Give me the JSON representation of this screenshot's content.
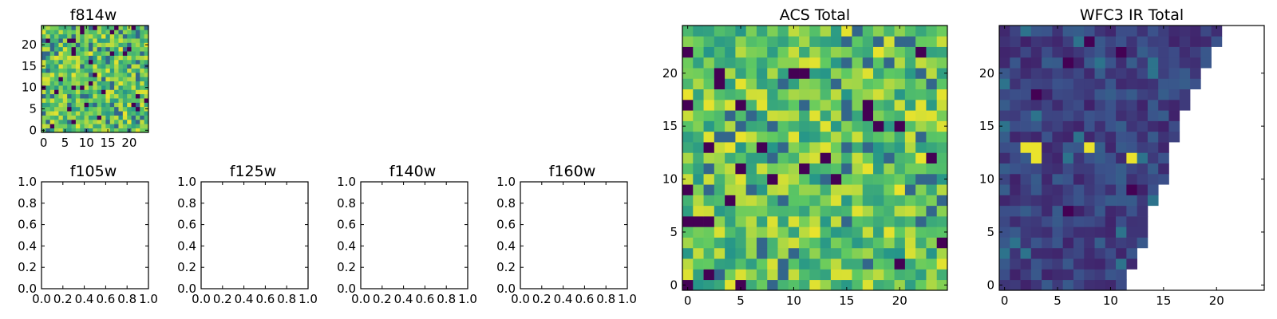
{
  "colormap": [
    "#440154",
    "#3b528b",
    "#21918c",
    "#5ec962",
    "#fde725"
  ],
  "chart_data": [
    {
      "type": "heatmap",
      "id": "f814w",
      "title": "f814w",
      "grid": [
        25,
        25
      ],
      "xlim": [
        -0.5,
        24.5
      ],
      "ylim": [
        -0.5,
        24.5
      ],
      "xticks": [
        0,
        5,
        10,
        15,
        20
      ],
      "yticks": [
        0,
        5,
        10,
        15,
        20
      ],
      "xtick_labels": [
        "0",
        "5",
        "10",
        "15",
        "20"
      ],
      "ytick_labels": [
        "0",
        "5",
        "10",
        "15",
        "20"
      ],
      "values": "noisy field, 25×25 pixels, normalized intensity mostly 0.45–0.95 with sparse dark outliers",
      "style": "acs",
      "seed": 814
    },
    {
      "type": "heatmap",
      "id": "f105w",
      "title": "f105w",
      "empty": true,
      "xlim": [
        0,
        1
      ],
      "ylim": [
        0,
        1
      ],
      "xticks": [
        0,
        0.2,
        0.4,
        0.6,
        0.8,
        1.0
      ],
      "yticks": [
        0,
        0.2,
        0.4,
        0.6,
        0.8,
        1.0
      ],
      "xtick_labels": [
        "0.0",
        "0.2",
        "0.4",
        "0.6",
        "0.8",
        "1.0"
      ],
      "ytick_labels": [
        "0.0",
        "0.2",
        "0.4",
        "0.6",
        "0.8",
        "1.0"
      ]
    },
    {
      "type": "heatmap",
      "id": "f125w",
      "title": "f125w",
      "empty": true,
      "xlim": [
        0,
        1
      ],
      "ylim": [
        0,
        1
      ],
      "xticks": [
        0,
        0.2,
        0.4,
        0.6,
        0.8,
        1.0
      ],
      "yticks": [
        0,
        0.2,
        0.4,
        0.6,
        0.8,
        1.0
      ],
      "xtick_labels": [
        "0.0",
        "0.2",
        "0.4",
        "0.6",
        "0.8",
        "1.0"
      ],
      "ytick_labels": [
        "0.0",
        "0.2",
        "0.4",
        "0.6",
        "0.8",
        "1.0"
      ]
    },
    {
      "type": "heatmap",
      "id": "f140w",
      "title": "f140w",
      "empty": true,
      "xlim": [
        0,
        1
      ],
      "ylim": [
        0,
        1
      ],
      "xticks": [
        0,
        0.2,
        0.4,
        0.6,
        0.8,
        1.0
      ],
      "yticks": [
        0,
        0.2,
        0.4,
        0.6,
        0.8,
        1.0
      ],
      "xtick_labels": [
        "0.0",
        "0.2",
        "0.4",
        "0.6",
        "0.8",
        "1.0"
      ],
      "ytick_labels": [
        "0.0",
        "0.2",
        "0.4",
        "0.6",
        "0.8",
        "1.0"
      ]
    },
    {
      "type": "heatmap",
      "id": "f160w",
      "title": "f160w",
      "empty": true,
      "xlim": [
        0,
        1
      ],
      "ylim": [
        0,
        1
      ],
      "xticks": [
        0,
        0.2,
        0.4,
        0.6,
        0.8,
        1.0
      ],
      "yticks": [
        0,
        0.2,
        0.4,
        0.6,
        0.8,
        1.0
      ],
      "xtick_labels": [
        "0.0",
        "0.2",
        "0.4",
        "0.6",
        "0.8",
        "1.0"
      ],
      "ytick_labels": [
        "0.0",
        "0.2",
        "0.4",
        "0.6",
        "0.8",
        "1.0"
      ]
    },
    {
      "type": "heatmap",
      "id": "acs-total",
      "title": "ACS Total",
      "grid": [
        25,
        25
      ],
      "xlim": [
        -0.5,
        24.5
      ],
      "ylim": [
        -0.5,
        24.5
      ],
      "xticks": [
        0,
        5,
        10,
        15,
        20
      ],
      "yticks": [
        0,
        5,
        10,
        15,
        20
      ],
      "xtick_labels": [
        "0",
        "5",
        "10",
        "15",
        "20"
      ],
      "ytick_labels": [
        "0",
        "5",
        "10",
        "15",
        "20"
      ],
      "values": "noisy field, 25×25 pixels, normalized intensity mostly 0.45–0.95; dark pixels near (7,19),(0,18),(10,10),(5,8),(19,9),(0,5),(0,4),(24,3)",
      "style": "acs",
      "seed": 2016
    },
    {
      "type": "heatmap",
      "id": "wfc3-ir-total",
      "title": "WFC3 IR Total",
      "grid": [
        25,
        25
      ],
      "xlim": [
        -0.5,
        24.5
      ],
      "ylim": [
        -0.5,
        24.5
      ],
      "xticks": [
        0,
        5,
        10,
        15,
        20
      ],
      "yticks": [
        0,
        5,
        10,
        15,
        20
      ],
      "xtick_labels": [
        "0",
        "5",
        "10",
        "15",
        "20"
      ],
      "ytick_labels": [
        "0",
        "5",
        "10",
        "15",
        "20"
      ],
      "values": "low-intensity field (normalized ~0.1–0.3) covering the lower-left triangle; upper-right region is blank (no data)",
      "coverage_max_col": [
        11,
        11,
        12,
        12,
        13,
        13,
        13,
        13,
        14,
        14,
        15,
        15,
        15,
        15,
        16,
        16,
        16,
        17,
        17,
        18,
        18,
        19,
        19,
        20,
        20
      ],
      "bright_pixels": [
        [
          2,
          13
        ],
        [
          3,
          13
        ],
        [
          3,
          12
        ],
        [
          8,
          13
        ],
        [
          12,
          12
        ]
      ],
      "dark_pixels": [
        [
          8,
          23
        ],
        [
          11,
          22
        ],
        [
          6,
          21
        ],
        [
          3,
          18
        ],
        [
          16,
          13
        ],
        [
          12,
          9
        ],
        [
          6,
          7
        ]
      ],
      "style": "ir",
      "seed": 160
    }
  ]
}
